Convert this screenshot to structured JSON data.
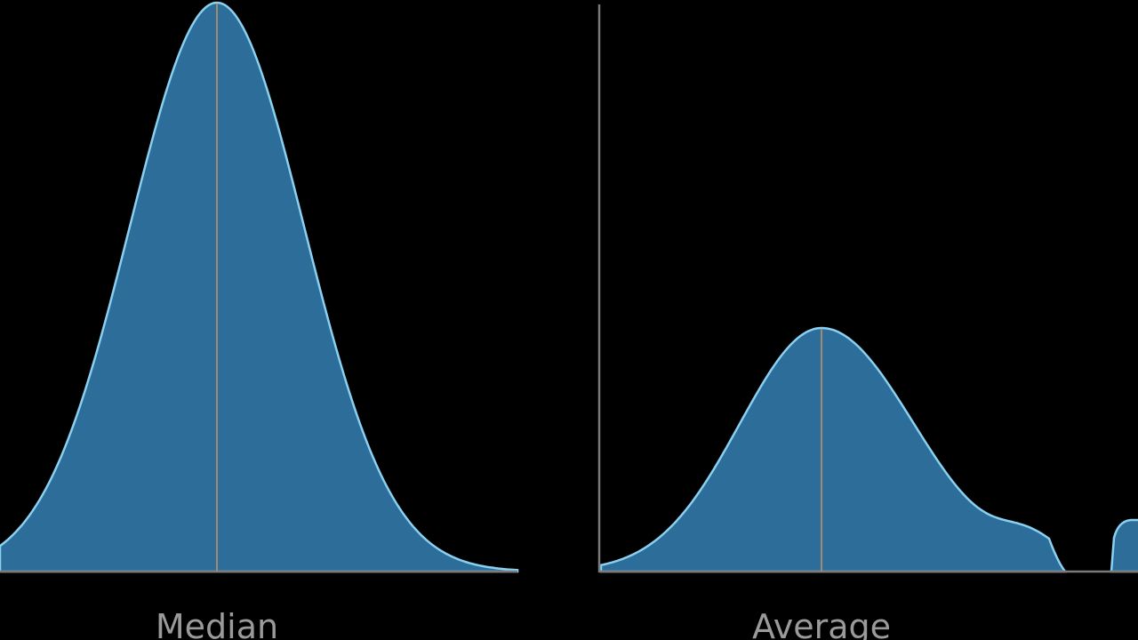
{
  "panels": [
    {
      "label": "Median"
    },
    {
      "label": "Average"
    }
  ]
}
